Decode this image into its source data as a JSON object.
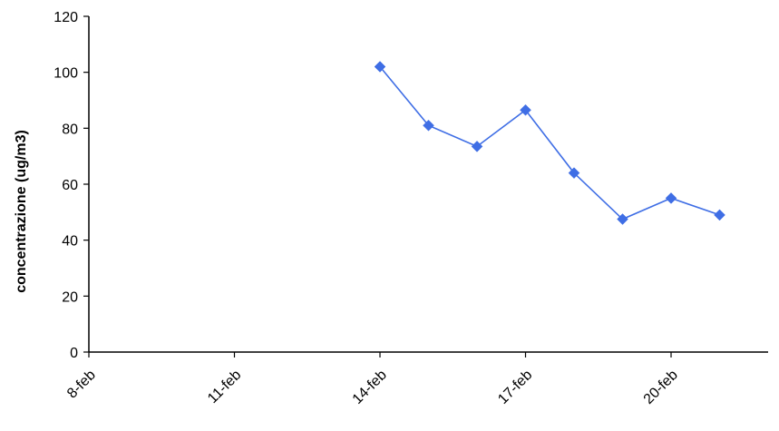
{
  "chart_data": {
    "type": "line",
    "title": "",
    "xlabel": "",
    "ylabel": "concentrazione (ug/m3)",
    "ylim": [
      0,
      120
    ],
    "yticks": [
      "0",
      "20",
      "40",
      "60",
      "80",
      "100",
      "120"
    ],
    "xlim": [
      "2011-02-08",
      "2011-02-22"
    ],
    "xticks": [
      {
        "date": "2011-02-08",
        "label": "8-feb"
      },
      {
        "date": "2011-02-11",
        "label": "11-feb"
      },
      {
        "date": "2011-02-14",
        "label": "14-feb"
      },
      {
        "date": "2011-02-17",
        "label": "17-feb"
      },
      {
        "date": "2011-02-20",
        "label": "20-feb"
      }
    ],
    "grid": false,
    "legend": "none",
    "series": [
      {
        "color": "#3f6ee5",
        "marker": "diamond",
        "points": [
          {
            "x": "2011-02-14",
            "y": 102
          },
          {
            "x": "2011-02-15",
            "y": 81
          },
          {
            "x": "2011-02-16",
            "y": 73.5
          },
          {
            "x": "2011-02-17",
            "y": 86.5
          },
          {
            "x": "2011-02-18",
            "y": 64
          },
          {
            "x": "2011-02-19",
            "y": 47.5
          },
          {
            "x": "2011-02-20",
            "y": 55
          },
          {
            "x": "2011-02-21",
            "y": 49
          }
        ]
      }
    ]
  }
}
